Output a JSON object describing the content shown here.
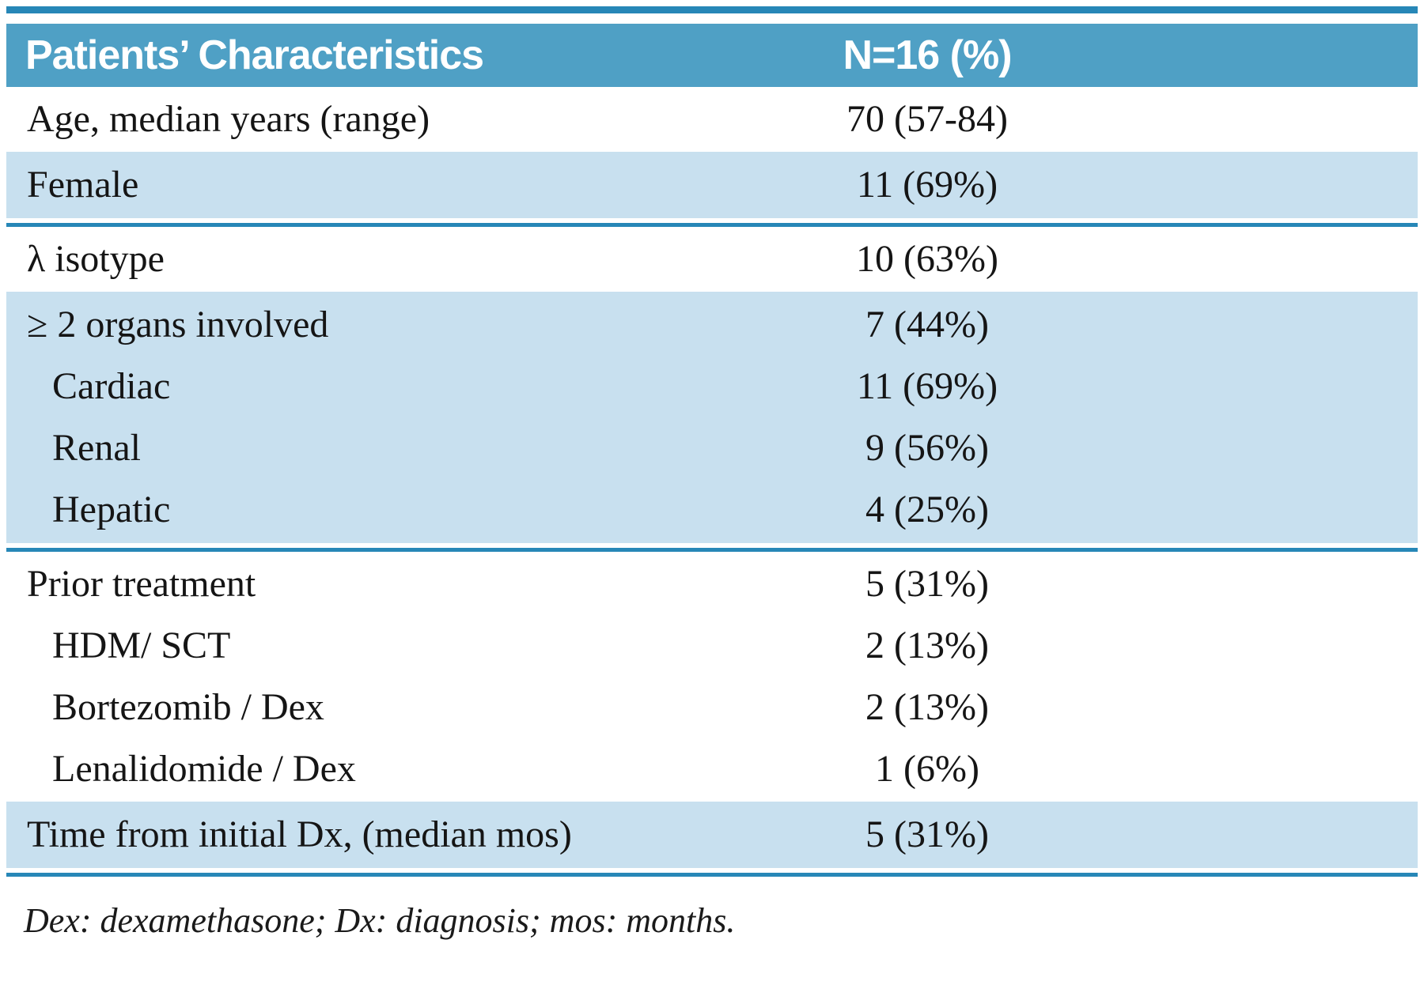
{
  "colors": {
    "header_bg": "#4fa0c5",
    "band_bg": "#c8e0ef",
    "rule": "#2787b7",
    "header_text": "#ffffff",
    "text": "#151515"
  },
  "table": {
    "header": {
      "col_label": "Patients’ Characteristics",
      "col_value": "N=16 (%)"
    },
    "sections": [
      {
        "bg": "white",
        "rows": [
          {
            "label": "Age, median years (range)",
            "value": "70 (57-84)"
          }
        ]
      },
      {
        "bg": "blue",
        "rows": [
          {
            "label": "Female",
            "value": "11 (69%)"
          }
        ]
      },
      {
        "bg": "white",
        "rows": [
          {
            "label": "λ isotype",
            "value": "10 (63%)"
          }
        ]
      },
      {
        "bg": "blue",
        "rows": [
          {
            "label": "≥ 2 organs involved",
            "value": "7 (44%)"
          },
          {
            "label": "Cardiac",
            "value": "11 (69%)"
          },
          {
            "label": "Renal",
            "value": "9 (56%)"
          },
          {
            "label": "Hepatic",
            "value": "4 (25%)"
          }
        ]
      },
      {
        "bg": "white",
        "rows": [
          {
            "label": "Prior treatment",
            "value": "5 (31%)"
          },
          {
            "label": "HDM/ SCT",
            "value": "2 (13%)"
          },
          {
            "label": "Bortezomib / Dex",
            "value": "2 (13%)"
          },
          {
            "label": "Lenalidomide / Dex",
            "value": "1 (6%)"
          }
        ]
      },
      {
        "bg": "blue",
        "rows": [
          {
            "label": "Time from initial Dx, (median mos)",
            "value": "5 (31%)"
          }
        ]
      }
    ],
    "footnote": "Dex: dexamethasone; Dx: diagnosis; mos: months."
  },
  "chart_data": {
    "type": "table",
    "title": "Patients’ Characteristics",
    "columns": [
      "Patients’ Characteristics",
      "N=16 (%)"
    ],
    "rows": [
      [
        "Age, median years (range)",
        "70 (57-84)"
      ],
      [
        "Female",
        "11 (69%)"
      ],
      [
        "λ isotype",
        "10 (63%)"
      ],
      [
        "≥ 2 organs involved",
        "7 (44%)"
      ],
      [
        "Cardiac",
        "11 (69%)"
      ],
      [
        "Renal",
        "9 (56%)"
      ],
      [
        "Hepatic",
        "4 (25%)"
      ],
      [
        "Prior treatment",
        "5 (31%)"
      ],
      [
        "HDM/ SCT",
        "2 (13%)"
      ],
      [
        "Bortezomib / Dex",
        "2 (13%)"
      ],
      [
        "Lenalidomide / Dex",
        "1 (6%)"
      ],
      [
        "Time from initial Dx, (median mos)",
        "5 (31%)"
      ]
    ],
    "footnote": "Dex: dexamethasone; Dx: diagnosis; mos: months."
  }
}
